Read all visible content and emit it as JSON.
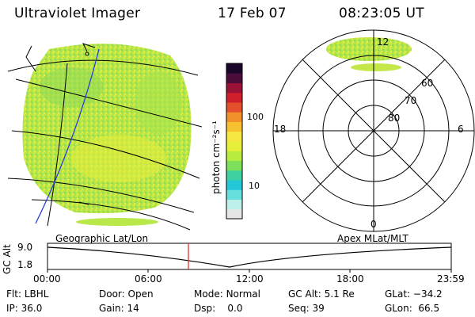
{
  "header": {
    "instrument": "Ultraviolet Imager",
    "date": "17 Feb 07",
    "time": "08:23:05 UT"
  },
  "panels": {
    "left_label": "Geographic Lat/Lon",
    "right_label": "Apex MLat/MLT"
  },
  "colorbar": {
    "unit_label": "photon cm⁻²s⁻¹",
    "tick_100": "100",
    "tick_10": "10",
    "colors": [
      "#e6e6e6",
      "#bdf0ea",
      "#66e0dd",
      "#22c7d8",
      "#3fd1a0",
      "#7ee05a",
      "#b8ec3d",
      "#e6f03a",
      "#f6e840",
      "#f7c02e",
      "#f2902a",
      "#e4502c",
      "#cf1f2a",
      "#9a1235",
      "#4a0c3a",
      "#1a0628"
    ]
  },
  "polar": {
    "lat_labels": [
      "60",
      "70",
      "80"
    ],
    "mlt_labels": {
      "top": "12",
      "left": "18",
      "right": "6",
      "bottom": "0"
    }
  },
  "orbit": {
    "ylabel": "GC Alt",
    "y_top": "9.0",
    "y_bottom": "1.8",
    "x_ticks": [
      "00:00",
      "06:00",
      "12:00",
      "18:00",
      "23:59"
    ],
    "marker_time": "08:23"
  },
  "info": {
    "row1": [
      {
        "label": "Flt:",
        "value": "LBHL"
      },
      {
        "label": "Door:",
        "value": "Open"
      },
      {
        "label": "Mode:",
        "value": "Normal"
      },
      {
        "label": "GC Alt:",
        "value": "5.1 Re"
      },
      {
        "label": "GLat:",
        "value": "−34.2"
      }
    ],
    "row2": [
      {
        "label": "IP:",
        "value": "36.0"
      },
      {
        "label": "Gain:",
        "value": "14"
      },
      {
        "label": "Dsp:",
        "value": "0.0"
      },
      {
        "label": "Seq:",
        "value": "39"
      },
      {
        "label": "GLon:",
        "value": "66.5"
      }
    ]
  }
}
